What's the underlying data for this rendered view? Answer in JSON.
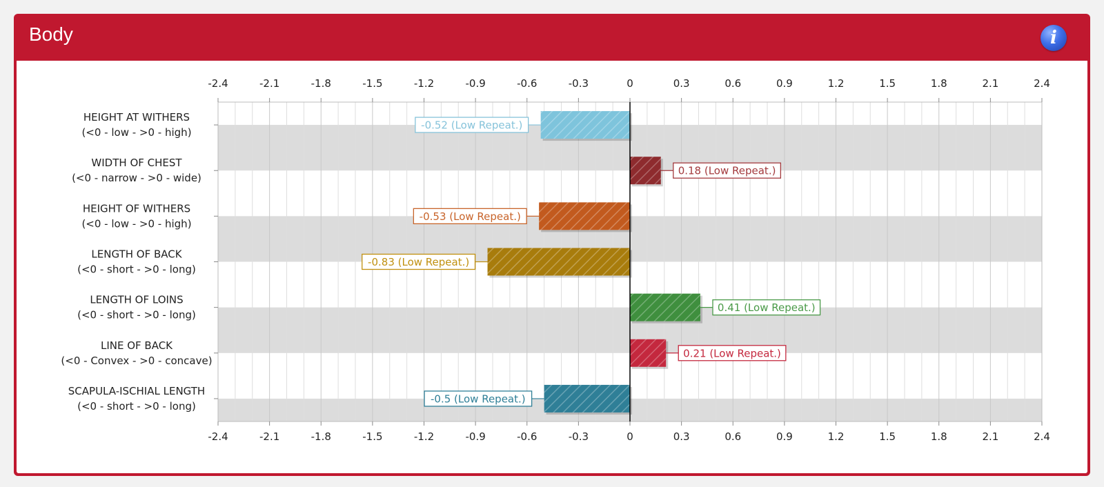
{
  "panel": {
    "title": "Body",
    "info_icon": "info-icon"
  },
  "colors": {
    "header": "#c0182f",
    "band": "#dcdcdc",
    "grid": "#cfcfcf",
    "axis": "#000000"
  },
  "chart_data": {
    "type": "bar",
    "orientation": "horizontal",
    "title": "",
    "xlim": [
      -2.4,
      2.4
    ],
    "ticks": [
      "-2.4",
      "-2.1",
      "-1.8",
      "-1.5",
      "-1.2",
      "-0.9",
      "-0.6",
      "-0.3",
      "0",
      "0.3",
      "0.6",
      "0.9",
      "1.2",
      "1.5",
      "1.8",
      "2.1",
      "2.4"
    ],
    "tick_step_minor": 0.1,
    "grid": true,
    "categories": [
      {
        "name": "HEIGHT AT WITHERS",
        "desc": "(<0 - low - >0 - high)"
      },
      {
        "name": "WIDTH OF CHEST",
        "desc": "(<0 - narrow - >0 - wide)"
      },
      {
        "name": "HEIGHT OF WITHERS",
        "desc": "(<0 - low - >0 - high)"
      },
      {
        "name": "LENGTH OF BACK",
        "desc": "(<0 - short - >0 - long)"
      },
      {
        "name": "LENGTH OF LOINS",
        "desc": "(<0 - short - >0 - long)"
      },
      {
        "name": "LINE OF BACK",
        "desc": "(<0 - Convex - >0 - concave)"
      },
      {
        "name": "SCAPULA-ISCHIAL LENGTH",
        "desc": "(<0 - short - >0 - long)"
      }
    ],
    "values": [
      -0.52,
      0.18,
      -0.53,
      -0.83,
      0.41,
      0.21,
      -0.5
    ],
    "labels": [
      "-0.52 (Low Repeat.)",
      "0.18 (Low Repeat.)",
      "-0.53 (Low Repeat.)",
      "-0.83 (Low Repeat.)",
      "0.41 (Low Repeat.)",
      "0.21 (Low Repeat.)",
      "-0.5 (Low Repeat.)"
    ],
    "bar_colors": [
      "#7ec4dc",
      "#8e2b2e",
      "#c25a1e",
      "#a87c0c",
      "#3f8f3e",
      "#c4283e",
      "#2f7f97"
    ],
    "label_colors": [
      "#86c3da",
      "#a33a3d",
      "#c8642a",
      "#c0900f",
      "#4a9a48",
      "#c4283e",
      "#2f7f97"
    ]
  }
}
